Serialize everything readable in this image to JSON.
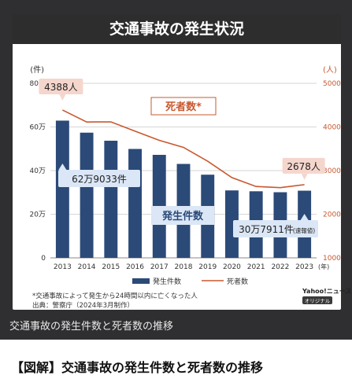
{
  "colors": {
    "bar": "#2b4a78",
    "line": "#c9582f",
    "grid": "#c8c8c8",
    "callout_red": "#f5d6cd",
    "callout_blue": "#dbe7f6"
  },
  "caption": "交通事故の発生件数と死者数の推移",
  "article_title": "【図解】交通事故の発生件数と死者数の推移",
  "notes": [
    "*交通事故によって発生から24時間以内に亡くなった人",
    "出典：警察庁（2024年3月制作）"
  ],
  "logo": {
    "top": "Yahoo!ニュース",
    "bottom": "オリジナル"
  },
  "chart_data": {
    "type": "bar",
    "title": "交通事故の発生状況",
    "categories": [
      "2013",
      "2014",
      "2015",
      "2016",
      "2017",
      "2018",
      "2019",
      "2020",
      "2021",
      "2022",
      "2023"
    ],
    "x_unit": "(年)",
    "left_axis": {
      "unit": "(件)",
      "ticks": [
        "0",
        "20万",
        "40万",
        "60万",
        "80万"
      ],
      "range": [
        0,
        800000
      ]
    },
    "right_axis": {
      "unit": "(人)",
      "ticks": [
        "1000",
        "2000",
        "3000",
        "4000",
        "5000"
      ],
      "range": [
        1000,
        5000
      ]
    },
    "series": [
      {
        "name": "発生件数",
        "type": "bar",
        "axis": "left",
        "values": [
          629033,
          573842,
          536899,
          499201,
          472165,
          430601,
          381237,
          309178,
          305196,
          300839,
          307911
        ]
      },
      {
        "name": "死者数",
        "type": "line",
        "axis": "right",
        "values": [
          4388,
          4113,
          4117,
          3904,
          3694,
          3532,
          3215,
          2839,
          2636,
          2610,
          2678
        ]
      }
    ],
    "labels": {
      "bars_series": "発生件数",
      "line_series": "死者数*",
      "first_bar": "62万9033件",
      "last_bar": "30万7911件",
      "last_bar_note": "(速報値)",
      "first_point": "4388人",
      "last_point": "2678人"
    },
    "legend": {
      "position": "bottom",
      "items": [
        "発生件数",
        "死者数"
      ]
    },
    "grid": true
  }
}
